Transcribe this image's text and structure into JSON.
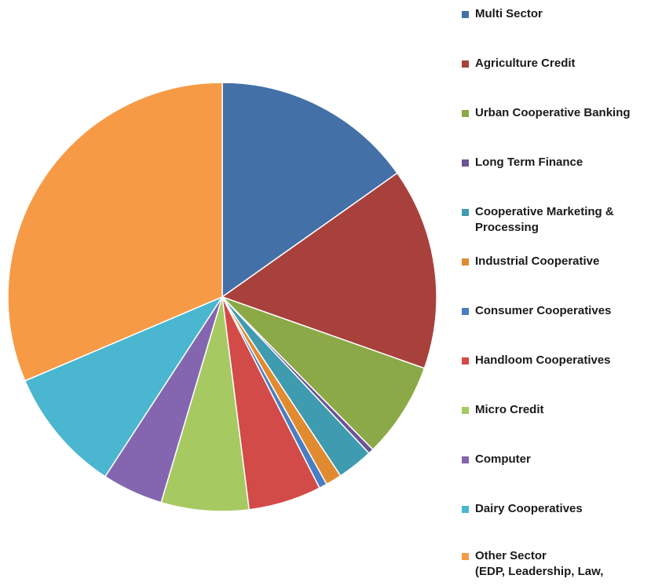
{
  "chart_data": {
    "type": "pie",
    "title": "",
    "legend_position": "right",
    "series": [
      {
        "name": "Multi Sector",
        "value": 15.2,
        "color": "#4470A8"
      },
      {
        "name": "Agriculture Credit",
        "value": 15.2,
        "color": "#A8403C"
      },
      {
        "name": "Urban Cooperative Banking",
        "value": 7.2,
        "color": "#8BA946"
      },
      {
        "name": "Long Term Finance",
        "value": 0.4,
        "color": "#6B5394"
      },
      {
        "name": "Cooperative Marketing &\nProcessing",
        "value": 2.7,
        "color": "#3E9BB0"
      },
      {
        "name": "Industrial Cooperative",
        "value": 1.2,
        "color": "#E08B30"
      },
      {
        "name": "Consumer Cooperatives",
        "value": 0.6,
        "color": "#4A7EC2"
      },
      {
        "name": "Handloom Cooperatives",
        "value": 5.5,
        "color": "#D24B48"
      },
      {
        "name": "Micro Credit",
        "value": 6.6,
        "color": "#A7C962"
      },
      {
        "name": "Computer",
        "value": 4.6,
        "color": "#8466B0"
      },
      {
        "name": "Dairy Cooperatives",
        "value": 9.4,
        "color": "#4AB6D0"
      },
      {
        "name": "Other Sector\n(EDP, Leadership, Law,",
        "value": 31.4,
        "color": "#F79A46"
      }
    ]
  }
}
